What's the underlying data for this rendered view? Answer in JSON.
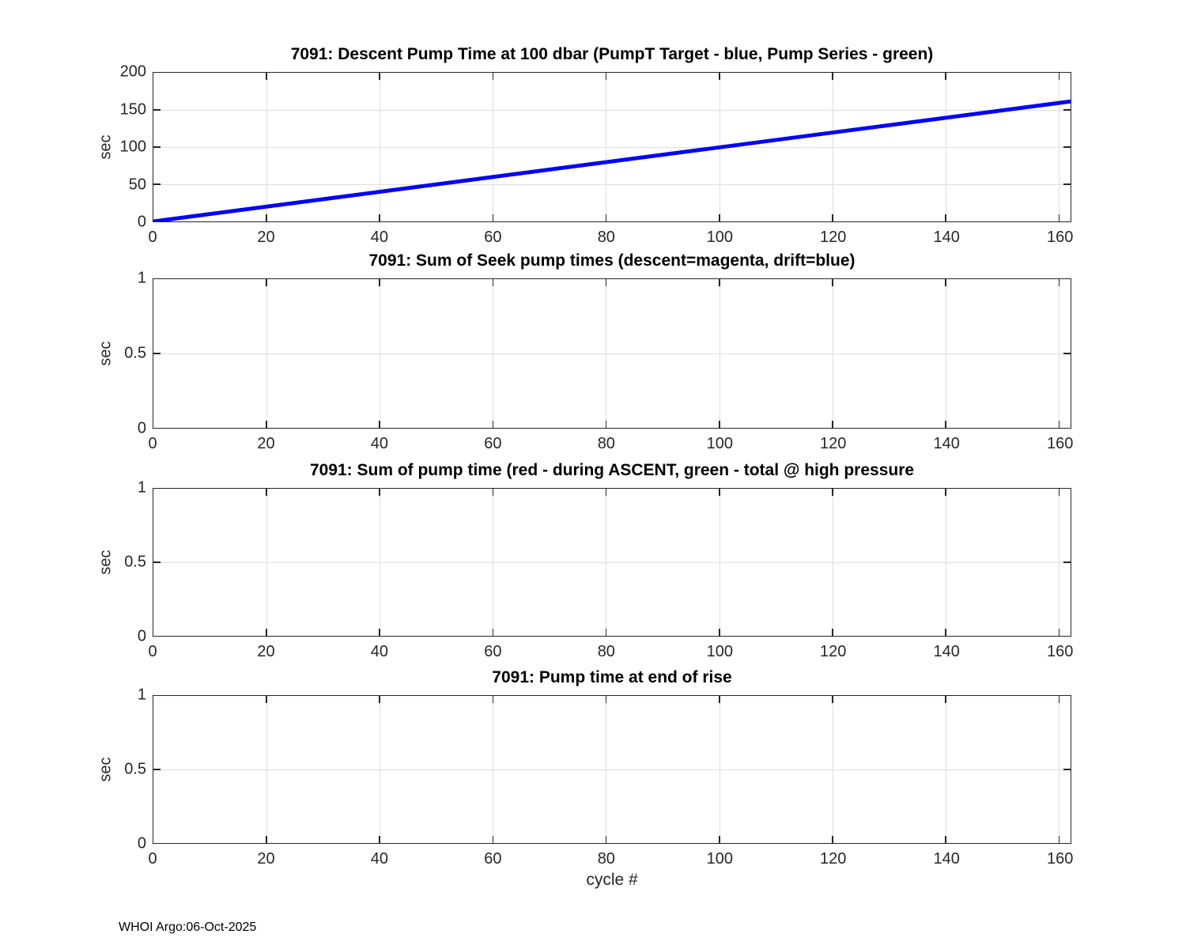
{
  "figure": {
    "xlabel": "cycle #",
    "footer": "WHOI Argo:06-Oct-2025",
    "background": "#ffffff",
    "axis_color": "#262626",
    "grid_color": "#dedede",
    "title_color": "#000000"
  },
  "chart_data": [
    {
      "type": "line",
      "title": "7091: Descent Pump Time at 100 dbar (PumpT Target - blue, Pump Series - green)",
      "ylabel": "sec",
      "xlabel": "",
      "xlim": [
        0,
        162
      ],
      "ylim": [
        0,
        200
      ],
      "xticks": [
        0,
        20,
        40,
        60,
        80,
        100,
        120,
        140,
        160
      ],
      "yticks": [
        0,
        50,
        100,
        150,
        200
      ],
      "grid": true,
      "legend_position": "none",
      "series": [
        {
          "name": "PumpT Target",
          "color": "#0000ff",
          "linewidth": 5,
          "x": [
            0,
            162
          ],
          "y": [
            0,
            161.5
          ]
        }
      ]
    },
    {
      "type": "line",
      "title": "7091: Sum of Seek pump times (descent=magenta, drift=blue)",
      "ylabel": "sec",
      "xlabel": "",
      "xlim": [
        0,
        162
      ],
      "ylim": [
        0,
        1
      ],
      "xticks": [
        0,
        20,
        40,
        60,
        80,
        100,
        120,
        140,
        160
      ],
      "yticks": [
        0,
        0.5,
        1
      ],
      "grid": true,
      "legend_position": "none",
      "series": []
    },
    {
      "type": "line",
      "title": "7091: Sum of pump time (red - during ASCENT, green - total @ high pressure",
      "ylabel": "sec",
      "xlabel": "",
      "xlim": [
        0,
        162
      ],
      "ylim": [
        0,
        1
      ],
      "xticks": [
        0,
        20,
        40,
        60,
        80,
        100,
        120,
        140,
        160
      ],
      "yticks": [
        0,
        0.5,
        1
      ],
      "grid": true,
      "legend_position": "none",
      "series": []
    },
    {
      "type": "line",
      "title": "7091: Pump time at end of rise",
      "ylabel": "sec",
      "xlabel": "cycle #",
      "xlim": [
        0,
        162
      ],
      "ylim": [
        0,
        1
      ],
      "xticks": [
        0,
        20,
        40,
        60,
        80,
        100,
        120,
        140,
        160
      ],
      "yticks": [
        0,
        0.5,
        1
      ],
      "grid": true,
      "legend_position": "none",
      "series": []
    }
  ]
}
